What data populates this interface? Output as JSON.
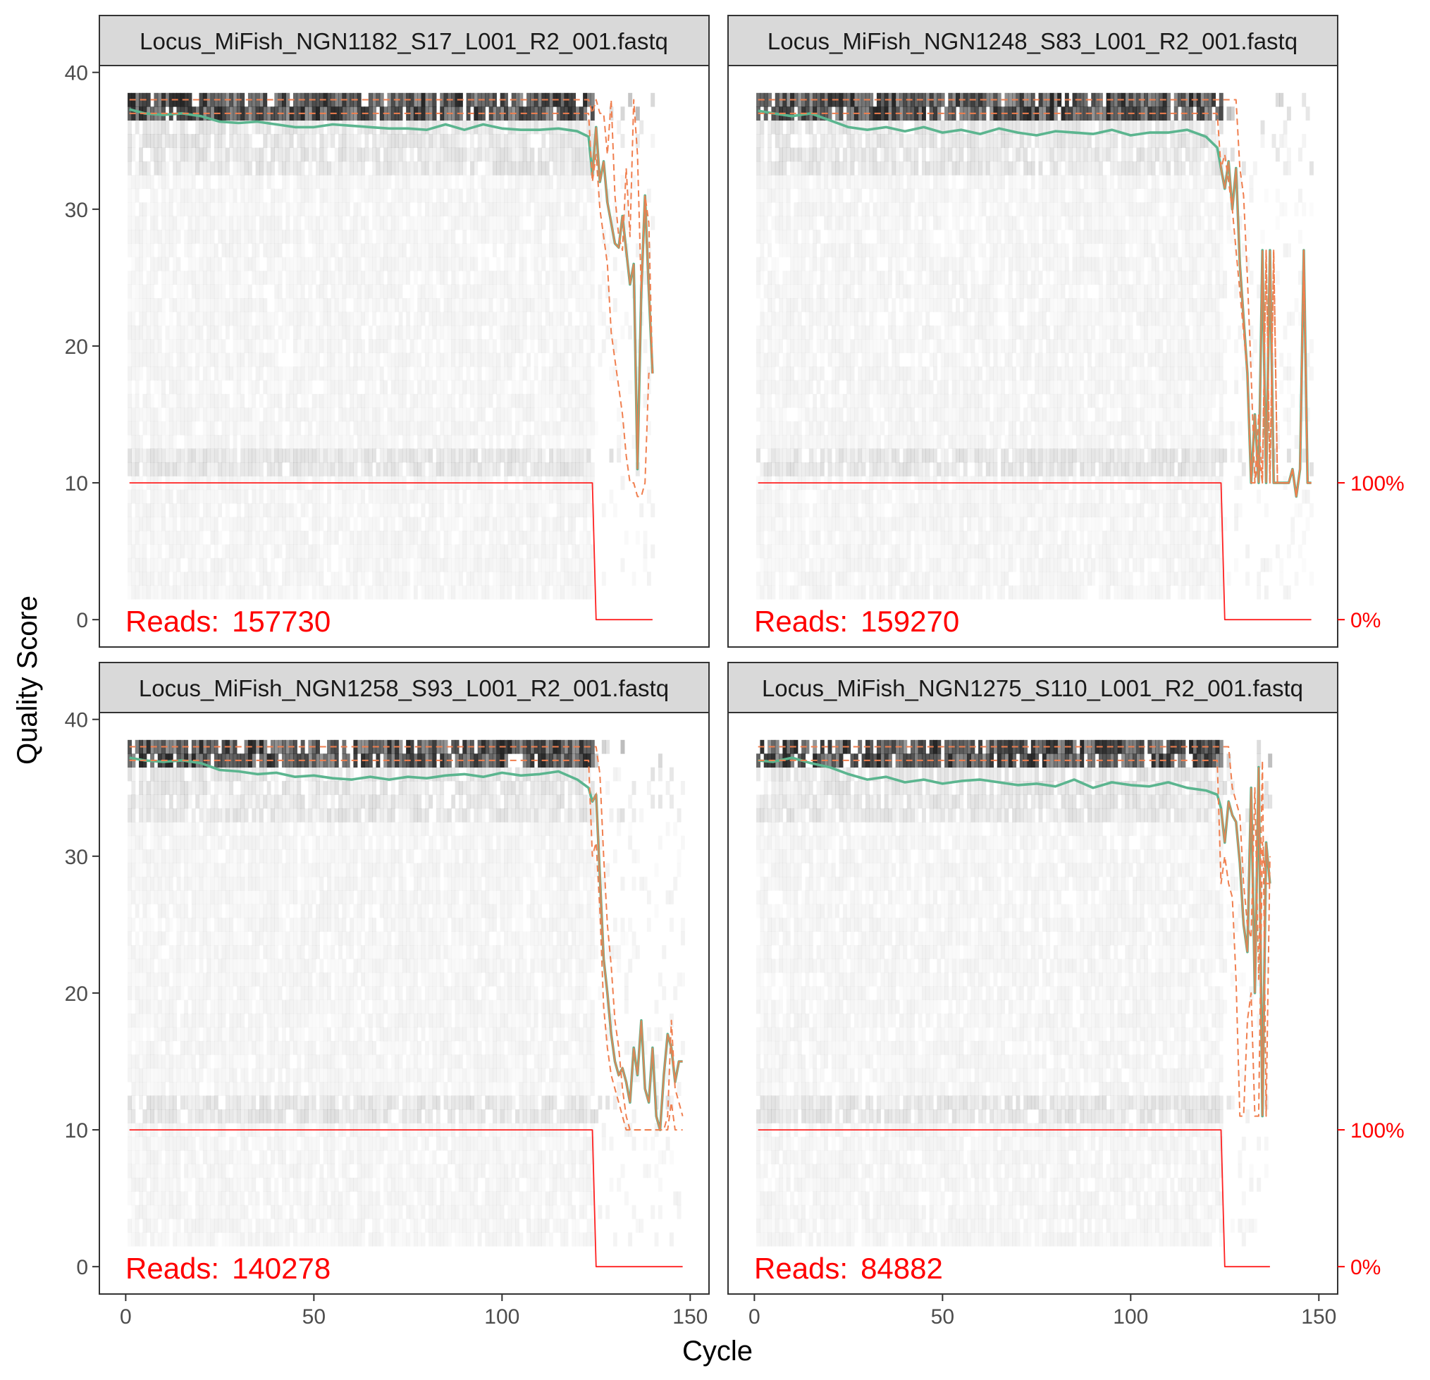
{
  "figure": {
    "x_axis_label": "Cycle",
    "y_axis_label": "Quality Score",
    "y_ticks": [
      0,
      10,
      20,
      30,
      40
    ],
    "x_ticks": [
      0,
      50,
      100,
      150
    ],
    "secondary_ticks": [
      "100%",
      "0%"
    ],
    "reads_prefix": "Reads:"
  },
  "colors": {
    "mean_line": "#5bb58f",
    "quantile_lines": "#f07f4f",
    "cumulative_line": "#ff2020",
    "reads_text": "#ff0000",
    "strip_fill": "#d9d9d9",
    "heat_dark": "#1a1a1a"
  },
  "chart_data": [
    {
      "type": "line",
      "title": "Locus_MiFish_NGN1182_S17_L001_R2_001.fastq",
      "reads": "157730",
      "xlabel": "Cycle",
      "ylabel": "Quality Score",
      "xlim": [
        -7,
        155
      ],
      "ylim": [
        -2,
        40.5
      ],
      "cutoff_cycle": 124,
      "series": [
        {
          "name": "mean",
          "x": [
            1,
            5,
            10,
            15,
            20,
            25,
            30,
            35,
            40,
            45,
            50,
            55,
            60,
            65,
            70,
            75,
            80,
            85,
            90,
            95,
            100,
            105,
            110,
            115,
            120,
            123,
            124,
            125,
            126,
            127,
            128,
            129,
            130,
            131,
            132,
            133,
            134,
            135,
            136,
            137,
            138,
            139,
            140
          ],
          "values": [
            37.3,
            37.0,
            36.9,
            37.0,
            36.8,
            36.4,
            36.3,
            36.4,
            36.2,
            36.0,
            36.0,
            36.2,
            36.1,
            36.0,
            35.9,
            35.9,
            35.8,
            36.2,
            35.8,
            36.2,
            35.9,
            35.8,
            35.8,
            35.9,
            35.7,
            35.3,
            32.5,
            36.0,
            32.0,
            33.5,
            30.5,
            29.0,
            27.5,
            27.2,
            29.5,
            27.0,
            24.5,
            26.0,
            11.0,
            24.0,
            31.0,
            24.0,
            18.0
          ]
        },
        {
          "name": "q75",
          "x": [
            1,
            10,
            20,
            25,
            30,
            50,
            70,
            90,
            110,
            123,
            124,
            125,
            126,
            127,
            128,
            129,
            130,
            131,
            132,
            133,
            134,
            135,
            136,
            137,
            138,
            139,
            140
          ],
          "values": [
            38,
            38,
            38,
            38,
            38,
            38,
            38,
            38,
            38,
            38,
            37,
            38,
            37,
            37,
            34,
            38,
            31,
            28,
            27,
            33,
            28,
            38,
            34,
            24,
            31,
            29,
            18
          ]
        },
        {
          "name": "q25",
          "x": [
            1,
            10,
            20,
            30,
            50,
            70,
            90,
            110,
            123,
            124,
            125,
            126,
            127,
            128,
            129,
            130,
            131,
            132,
            133,
            134,
            135,
            136,
            137,
            138,
            139,
            140
          ],
          "values": [
            37,
            37,
            37,
            37,
            37,
            37,
            37,
            37,
            37,
            32,
            34,
            30,
            28,
            26,
            21,
            19,
            17,
            15,
            12,
            10,
            10,
            9,
            9,
            10,
            18,
            18
          ]
        },
        {
          "name": "cumulative_reads",
          "x": [
            1,
            124,
            125,
            140
          ],
          "values": [
            10,
            10,
            0,
            0
          ]
        }
      ]
    },
    {
      "type": "line",
      "title": "Locus_MiFish_NGN1248_S83_L001_R2_001.fastq",
      "reads": "159270",
      "xlabel": "Cycle",
      "ylabel": "Quality Score",
      "xlim": [
        -7,
        155
      ],
      "ylim": [
        -2,
        40.5
      ],
      "cutoff_cycle": 124,
      "series": [
        {
          "name": "mean",
          "x": [
            1,
            5,
            10,
            15,
            20,
            25,
            30,
            35,
            40,
            45,
            50,
            55,
            60,
            65,
            70,
            75,
            80,
            85,
            90,
            95,
            100,
            105,
            110,
            115,
            120,
            123,
            124,
            125,
            126,
            127,
            128,
            129,
            130,
            131,
            132,
            133,
            134,
            135,
            136,
            137,
            138,
            139,
            140,
            141,
            142,
            143,
            144,
            145,
            146,
            147,
            148
          ],
          "values": [
            37.2,
            37.0,
            36.8,
            37.0,
            36.5,
            36.0,
            35.8,
            36.0,
            35.7,
            36.0,
            35.6,
            35.8,
            35.5,
            35.9,
            35.6,
            35.4,
            35.7,
            35.6,
            35.5,
            35.8,
            35.4,
            35.6,
            35.6,
            35.8,
            35.3,
            34.5,
            33.0,
            31.5,
            33.5,
            30.0,
            33.0,
            26.0,
            22.0,
            18.0,
            10.0,
            15.0,
            10.0,
            27.0,
            10.0,
            27.0,
            10.0,
            10.0,
            10.0,
            10.0,
            10.0,
            11.0,
            9.0,
            11.0,
            27.0,
            10.0,
            10.0
          ]
        },
        {
          "name": "q75",
          "x": [
            1,
            10,
            20,
            30,
            50,
            70,
            90,
            110,
            123,
            124,
            125,
            126,
            127,
            128,
            129,
            130,
            131,
            132,
            133,
            134,
            135,
            136,
            137,
            138,
            139,
            140,
            141,
            142,
            143,
            144,
            145,
            146,
            147,
            148
          ],
          "values": [
            38,
            38,
            38,
            38,
            38,
            38,
            38,
            38,
            38,
            38,
            38,
            38,
            38,
            38,
            33,
            31,
            25,
            18,
            10,
            15,
            10,
            27,
            10,
            27,
            10,
            10,
            10,
            10,
            11,
            9,
            11,
            27,
            10,
            10
          ]
        },
        {
          "name": "q25",
          "x": [
            1,
            10,
            20,
            30,
            50,
            70,
            90,
            110,
            123,
            124,
            125,
            126,
            127,
            128,
            129,
            130,
            131,
            132,
            133,
            134,
            135,
            136,
            137,
            138,
            139,
            140,
            141,
            142,
            143,
            144,
            145,
            146,
            147,
            148
          ],
          "values": [
            37,
            37,
            37,
            37,
            37,
            37,
            37,
            37,
            37,
            33,
            34,
            32,
            30,
            27,
            24,
            21,
            18,
            10,
            10,
            12,
            10,
            27,
            10,
            27,
            10,
            10,
            10,
            10,
            11,
            9,
            11,
            27,
            10,
            10
          ]
        },
        {
          "name": "cumulative_reads",
          "x": [
            1,
            124,
            125,
            148
          ],
          "values": [
            10,
            10,
            0,
            0
          ]
        }
      ]
    },
    {
      "type": "line",
      "title": "Locus_MiFish_NGN1258_S93_L001_R2_001.fastq",
      "reads": "140278",
      "xlabel": "Cycle",
      "ylabel": "Quality Score",
      "xlim": [
        -7,
        155
      ],
      "ylim": [
        -2,
        40.5
      ],
      "cutoff_cycle": 124,
      "series": [
        {
          "name": "mean",
          "x": [
            1,
            5,
            10,
            15,
            20,
            25,
            30,
            35,
            40,
            45,
            50,
            55,
            60,
            65,
            70,
            75,
            80,
            85,
            90,
            95,
            100,
            105,
            110,
            115,
            120,
            123,
            124,
            125,
            126,
            127,
            128,
            129,
            130,
            131,
            132,
            133,
            134,
            135,
            136,
            137,
            138,
            139,
            140,
            141,
            142,
            143,
            144,
            145,
            146,
            147,
            148
          ],
          "values": [
            37.2,
            37.0,
            36.9,
            37.0,
            36.8,
            36.3,
            36.2,
            36.0,
            36.1,
            35.8,
            35.9,
            35.7,
            35.6,
            35.8,
            35.6,
            35.8,
            35.7,
            35.9,
            36.0,
            35.8,
            36.1,
            35.9,
            36.0,
            36.2,
            35.6,
            35.0,
            34.0,
            34.5,
            28.5,
            22.5,
            20.0,
            17.0,
            15.0,
            14.0,
            14.5,
            13.5,
            12.0,
            16.0,
            14.0,
            18.0,
            13.0,
            12.0,
            16.0,
            11.0,
            10.0,
            14.0,
            17.0,
            16.0,
            13.5,
            15.0,
            15.0
          ]
        },
        {
          "name": "q75",
          "x": [
            1,
            10,
            20,
            30,
            50,
            70,
            90,
            110,
            123,
            124,
            125,
            126,
            127,
            128,
            129,
            130,
            131,
            132,
            133,
            134,
            135,
            136,
            137,
            138,
            139,
            140,
            141,
            142,
            143,
            144,
            145,
            146,
            147,
            148
          ],
          "values": [
            38,
            38,
            38,
            38,
            38,
            38,
            38,
            38,
            38,
            38,
            38,
            36,
            30,
            25,
            22,
            18,
            16,
            13,
            11,
            10,
            10,
            10,
            10,
            10,
            10,
            10,
            10,
            10,
            10,
            11,
            18,
            13,
            12,
            11
          ]
        },
        {
          "name": "q25",
          "x": [
            1,
            10,
            20,
            30,
            50,
            70,
            90,
            110,
            123,
            124,
            125,
            126,
            127,
            128,
            129,
            130,
            131,
            132,
            133,
            134,
            135,
            136,
            137,
            138,
            139,
            140,
            141,
            142,
            143,
            144,
            145,
            146,
            147,
            148
          ],
          "values": [
            37,
            37,
            37,
            37,
            37,
            37,
            37,
            37,
            37,
            30,
            31,
            26,
            19,
            16,
            14,
            13,
            12,
            11,
            10,
            10,
            10,
            10,
            10,
            10,
            10,
            10,
            10,
            10,
            10,
            10,
            12,
            10,
            10,
            10
          ]
        },
        {
          "name": "cumulative_reads",
          "x": [
            1,
            124,
            125,
            148
          ],
          "values": [
            10,
            10,
            0,
            0
          ]
        }
      ]
    },
    {
      "type": "line",
      "title": "Locus_MiFish_NGN1275_S110_L001_R2_001.fastq",
      "reads": "84882",
      "xlabel": "Cycle",
      "ylabel": "Quality Score",
      "xlim": [
        -7,
        155
      ],
      "ylim": [
        -2,
        40.5
      ],
      "cutoff_cycle": 124,
      "series": [
        {
          "name": "mean",
          "x": [
            1,
            5,
            10,
            15,
            20,
            25,
            30,
            35,
            40,
            45,
            50,
            55,
            60,
            65,
            70,
            75,
            80,
            85,
            90,
            95,
            100,
            105,
            110,
            115,
            120,
            123,
            124,
            125,
            126,
            127,
            128,
            129,
            130,
            131,
            132,
            133,
            134,
            135,
            136,
            137
          ],
          "values": [
            37.0,
            36.9,
            37.2,
            36.8,
            36.5,
            36.0,
            35.6,
            35.8,
            35.4,
            35.6,
            35.3,
            35.5,
            35.6,
            35.4,
            35.2,
            35.3,
            35.1,
            35.6,
            35.0,
            35.4,
            35.2,
            35.1,
            35.4,
            35.0,
            34.8,
            34.5,
            33.5,
            31.0,
            34.0,
            33.0,
            32.5,
            29.5,
            25.0,
            23.0,
            35.0,
            20.0,
            36.5,
            11.0,
            31.0,
            28.0
          ]
        },
        {
          "name": "q75",
          "x": [
            1,
            10,
            20,
            30,
            50,
            70,
            90,
            110,
            123,
            124,
            125,
            126,
            127,
            128,
            129,
            130,
            131,
            132,
            133,
            134,
            135,
            136,
            137
          ],
          "values": [
            38,
            38,
            38,
            38,
            38,
            38,
            38,
            38,
            38,
            38,
            38,
            38,
            35,
            34,
            33,
            28,
            25,
            24,
            35,
            21,
            37,
            11,
            30
          ]
        },
        {
          "name": "q25",
          "x": [
            1,
            10,
            20,
            25,
            30,
            50,
            70,
            90,
            110,
            123,
            124,
            125,
            126,
            127,
            128,
            129,
            130,
            131,
            132,
            133,
            134,
            135,
            136,
            137
          ],
          "values": [
            37,
            37,
            37,
            37,
            37,
            37,
            37,
            37,
            37,
            37,
            28,
            30,
            28,
            27,
            21,
            11,
            11,
            18,
            20,
            11,
            11,
            31,
            28,
            28
          ]
        },
        {
          "name": "cumulative_reads",
          "x": [
            1,
            124,
            125,
            137
          ],
          "values": [
            10,
            10,
            0,
            0
          ]
        }
      ]
    }
  ]
}
